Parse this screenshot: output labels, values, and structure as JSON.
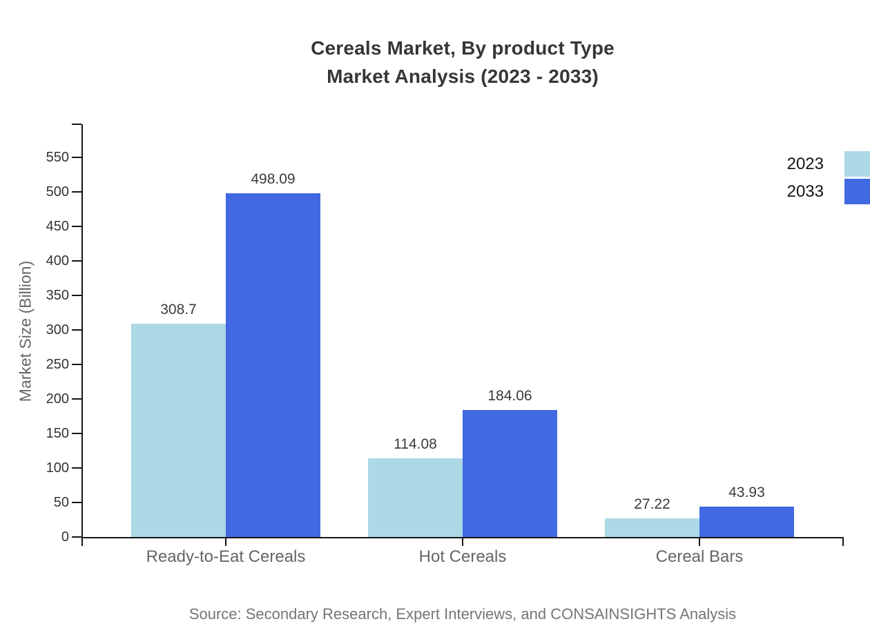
{
  "title": {
    "line1": "Cereals Market, By product Type",
    "line2": "Market Analysis (2023 - 2033)"
  },
  "source": "Source: Secondary Research, Expert Interviews, and CONSAINSIGHTS Analysis",
  "colors": {
    "series_2023": "#add8e6",
    "series_2033": "#4169e1",
    "axis": "#151515",
    "tick_text": "#333333",
    "muted_text": "#666666",
    "source_text": "#757575"
  },
  "chart_data": {
    "type": "bar",
    "title": "Cereals Market, By product Type — Market Analysis (2023 - 2033)",
    "categories": [
      "Ready-to-Eat Cereals",
      "Hot Cereals",
      "Cereal Bars"
    ],
    "series": [
      {
        "name": "2023",
        "color": "#add8e6",
        "values": [
          308.7,
          114.08,
          27.22
        ]
      },
      {
        "name": "2033",
        "color": "#4169e1",
        "values": [
          498.09,
          184.06,
          43.93
        ]
      }
    ],
    "value_labels": [
      "308.7",
      "498.09",
      "114.08",
      "184.06",
      "27.22",
      "43.93"
    ],
    "xlabel": "",
    "ylabel": "Market Size (Billion)",
    "ylim": [
      0,
      600
    ],
    "yticks": [
      0,
      50,
      100,
      150,
      200,
      250,
      300,
      350,
      400,
      450,
      500,
      550
    ],
    "grid": false,
    "legend_position": "top-right",
    "legend": [
      "2023",
      "2033"
    ]
  }
}
